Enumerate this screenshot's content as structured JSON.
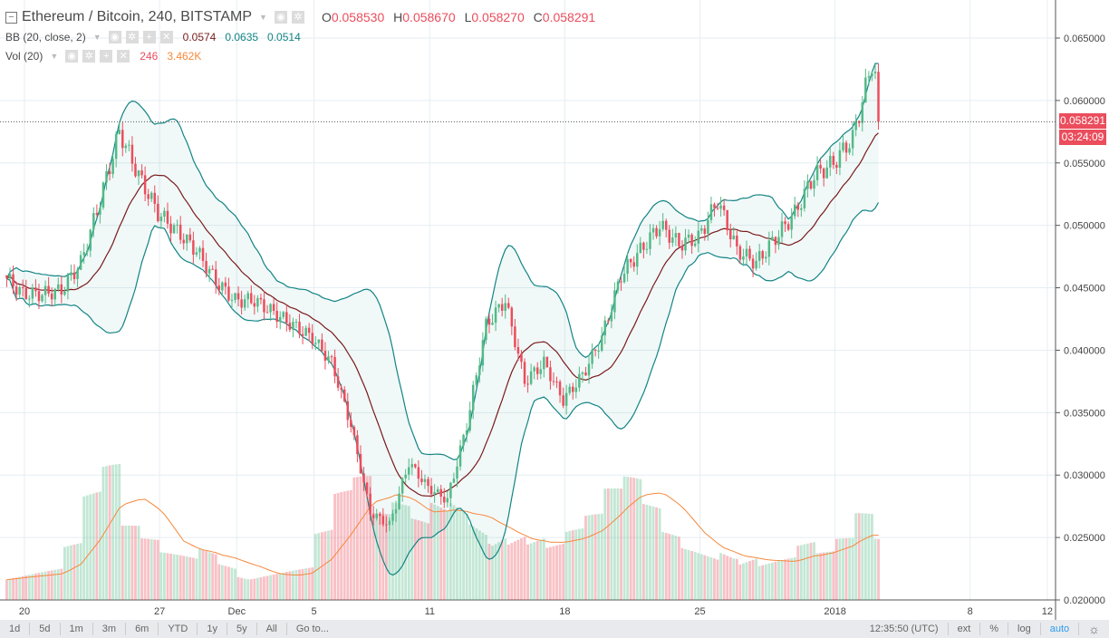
{
  "header": {
    "symbol": "Ethereum / Bitcoin, 240, BITSTAMP",
    "o_label": "O",
    "o": "0.058530",
    "h_label": "H",
    "h": "0.058670",
    "l_label": "L",
    "l": "0.058270",
    "c_label": "C",
    "c": "0.058291"
  },
  "bb": {
    "label": "BB (20, close, 2)",
    "mid": "0.0574",
    "upper": "0.0635",
    "lower": "0.0514"
  },
  "vol": {
    "label": "Vol (20)",
    "value": "246",
    "ma": "3.462K"
  },
  "price_tag": "0.058291",
  "countdown": "03:24:09",
  "toolbar": {
    "ranges": [
      "1d",
      "5d",
      "1m",
      "3m",
      "6m",
      "YTD",
      "1y",
      "5y",
      "All",
      "Go to..."
    ],
    "time": "12:35:50 (UTC)",
    "options": [
      "ext",
      "%",
      "log",
      "auto"
    ],
    "settings_icon": "gear-icon"
  },
  "colors": {
    "up": "#53b987",
    "down": "#eb4d5c",
    "bb_band": "#138484",
    "bb_mid": "#7a1b1b",
    "vol_ma": "#f6883c"
  },
  "chart_data": {
    "type": "candlestick",
    "interval": "240",
    "y_ticks": [
      "0.065000",
      "0.060000",
      "0.055000",
      "0.050000",
      "0.045000",
      "0.040000",
      "0.035000",
      "0.030000",
      "0.025000",
      "0.020000"
    ],
    "ylim": [
      0.02,
      0.065
    ],
    "x_ticks": [
      {
        "label": "20",
        "day": 1
      },
      {
        "label": "27",
        "day": 8
      },
      {
        "label": "Dec",
        "day": 12
      },
      {
        "label": "5",
        "day": 16
      },
      {
        "label": "11",
        "day": 22
      },
      {
        "label": "18",
        "day": 29
      },
      {
        "label": "25",
        "day": 36
      },
      {
        "label": "2018",
        "day": 43
      },
      {
        "label": "8",
        "day": 50
      },
      {
        "label": "12",
        "day": 54
      }
    ],
    "start": "Nov 19",
    "daily_close": [
      0.046,
      0.0445,
      0.0445,
      0.0448,
      0.047,
      0.052,
      0.0575,
      0.054,
      0.051,
      0.0495,
      0.048,
      0.0455,
      0.044,
      0.044,
      0.043,
      0.042,
      0.041,
      0.039,
      0.034,
      0.027,
      0.026,
      0.031,
      0.029,
      0.028,
      0.034,
      0.042,
      0.044,
      0.0375,
      0.039,
      0.036,
      0.038,
      0.041,
      0.046,
      0.048,
      0.05,
      0.0485,
      0.049,
      0.052,
      0.048,
      0.047,
      0.049,
      0.051,
      0.054,
      0.055,
      0.057,
      0.063,
      0.0583
    ],
    "daily_volume_k": [
      4,
      3,
      3,
      3,
      5,
      9,
      11,
      6,
      5,
      4,
      4,
      5,
      4,
      3,
      3,
      3,
      3,
      6,
      9,
      10,
      7,
      8,
      7,
      9,
      10,
      9,
      8,
      7,
      6,
      5,
      6,
      7,
      9,
      10,
      8,
      6,
      5,
      5,
      6,
      5,
      4,
      4,
      5,
      4,
      5,
      7,
      5
    ],
    "last_price": 0.058291
  }
}
